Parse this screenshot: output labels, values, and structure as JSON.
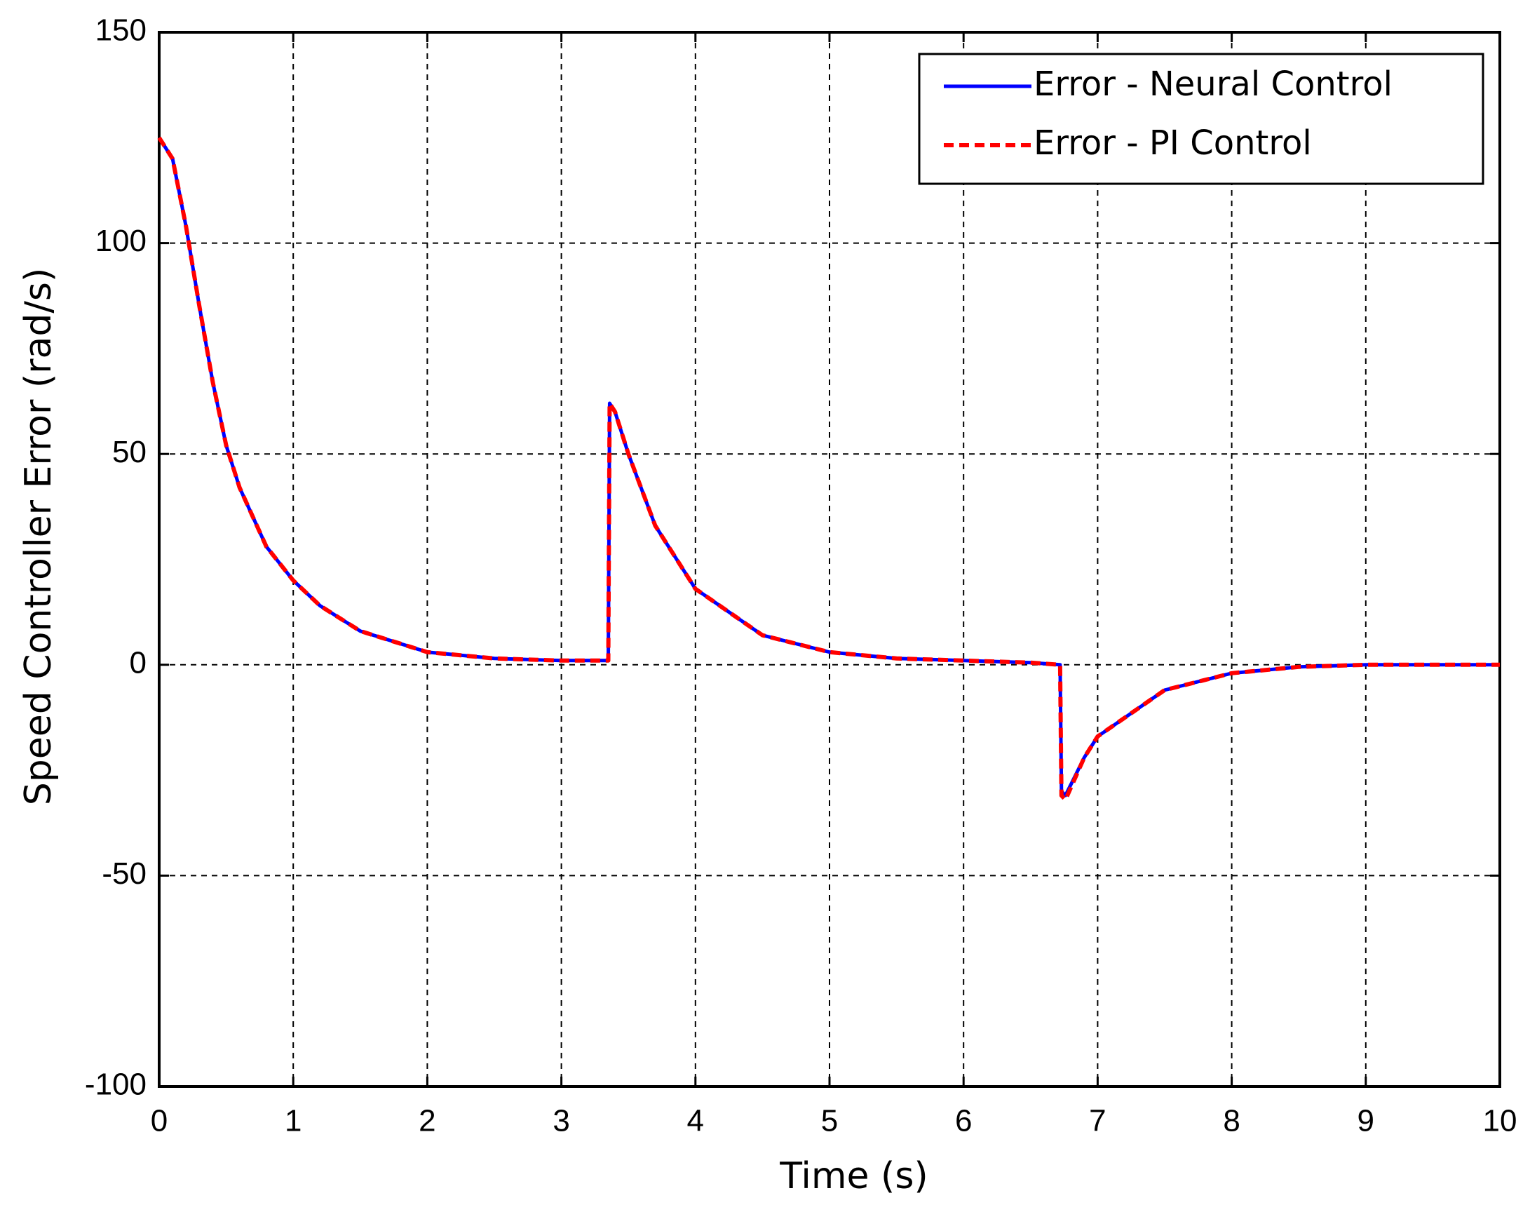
{
  "chart_data": {
    "type": "line",
    "xlabel": "Time (s)",
    "ylabel": "Speed Controller Error (rad/s)",
    "x": [
      0,
      0.1,
      0.2,
      0.3,
      0.4,
      0.5,
      0.6,
      0.8,
      1,
      1.2,
      1.5,
      2,
      2.5,
      3,
      3.35,
      3.36,
      3.4,
      3.5,
      3.7,
      4,
      4.5,
      5,
      5.5,
      6,
      6.5,
      6.72,
      6.73,
      6.76,
      6.9,
      7,
      7.5,
      8,
      8.5,
      9,
      10
    ],
    "series": [
      {
        "name": "Error - Neural Control",
        "color": "#0000ff",
        "style": "solid",
        "values": [
          125,
          120,
          104,
          85,
          67,
          52,
          42,
          28,
          20,
          14,
          8,
          3,
          1.5,
          1,
          1,
          62,
          60,
          50,
          33,
          18,
          7,
          3,
          1.5,
          1,
          0.5,
          0,
          -30,
          -31,
          -22,
          -17,
          -6,
          -2,
          -0.5,
          0,
          0
        ]
      },
      {
        "name": "Error - PI Control",
        "color": "#ff0000",
        "style": "dashed",
        "values": [
          125,
          120,
          104,
          85,
          67,
          52,
          42,
          28,
          20,
          14,
          8,
          3,
          1.5,
          1,
          1,
          62,
          60,
          50,
          33,
          18,
          7,
          3,
          1.5,
          1,
          0.5,
          0,
          -31,
          -32,
          -22,
          -17,
          -6,
          -2,
          -0.5,
          0,
          0
        ]
      }
    ],
    "xlim": [
      0,
      10
    ],
    "xticks": [
      0,
      1,
      2,
      3,
      4,
      5,
      6,
      7,
      8,
      9,
      10
    ],
    "ylim": [
      -100,
      150
    ],
    "yticks": [
      -100,
      -50,
      0,
      50,
      100,
      150
    ],
    "grid": true,
    "legend": "upper right"
  }
}
